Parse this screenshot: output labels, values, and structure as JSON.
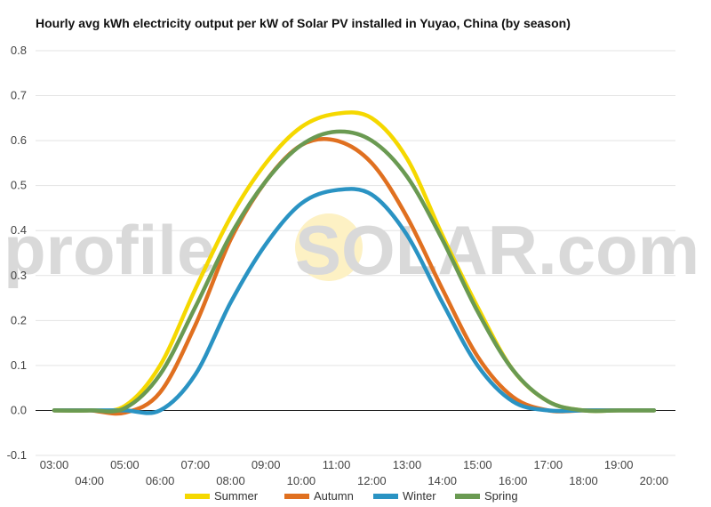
{
  "chart_data": {
    "type": "line",
    "title": "Hourly avg kWh electricity output per kW of Solar PV installed in Yuyao, China (by season)",
    "xlabel": "",
    "ylabel": "",
    "x": [
      "03:00",
      "04:00",
      "05:00",
      "06:00",
      "07:00",
      "08:00",
      "09:00",
      "10:00",
      "11:00",
      "12:00",
      "13:00",
      "14:00",
      "15:00",
      "16:00",
      "17:00",
      "18:00",
      "19:00",
      "20:00"
    ],
    "yticks": [
      "0.8",
      "0.7",
      "0.6",
      "0.5",
      "0.4",
      "0.3",
      "0.2",
      "0.1",
      "0.0",
      "-0.1"
    ],
    "ylim": [
      -0.1,
      0.8
    ],
    "grid": true,
    "legend": "bottom",
    "series": [
      {
        "name": "Summer",
        "color": "#f5d800",
        "values": [
          0,
          0,
          0.01,
          0.1,
          0.27,
          0.43,
          0.55,
          0.63,
          0.66,
          0.65,
          0.56,
          0.39,
          0.23,
          0.09,
          0.02,
          0,
          0,
          0
        ]
      },
      {
        "name": "Autumn",
        "color": "#e07020",
        "values": [
          0,
          0,
          -0.005,
          0.04,
          0.19,
          0.38,
          0.51,
          0.59,
          0.6,
          0.55,
          0.43,
          0.27,
          0.12,
          0.03,
          0,
          0,
          0,
          0
        ]
      },
      {
        "name": "Winter",
        "color": "#2a93c3",
        "values": [
          0,
          0,
          0,
          0,
          0.08,
          0.24,
          0.37,
          0.46,
          0.49,
          0.48,
          0.39,
          0.24,
          0.1,
          0.02,
          0,
          0,
          0,
          0
        ]
      },
      {
        "name": "Spring",
        "color": "#6a9a52",
        "values": [
          0,
          0,
          0.005,
          0.08,
          0.23,
          0.39,
          0.51,
          0.59,
          0.62,
          0.6,
          0.52,
          0.38,
          0.22,
          0.09,
          0.02,
          0,
          0,
          0
        ]
      }
    ]
  },
  "watermark": {
    "left": "profile",
    "right": "SOLAR.com"
  }
}
